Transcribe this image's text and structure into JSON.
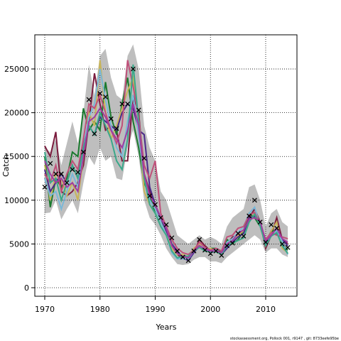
{
  "chart_data": {
    "type": "line",
    "xlabel": "Years",
    "ylabel": "Catch",
    "footer": "stockassessment.org, Pollock 001, r9147 , git: 8733eefe95be",
    "grid": true,
    "xlim": [
      1968.2,
      2015.66
    ],
    "ylim": [
      -974,
      28900
    ],
    "xticks": [
      1970,
      1980,
      1990,
      2000,
      2010
    ],
    "yticks": [
      0,
      5000,
      10000,
      15000,
      20000,
      25000
    ],
    "x": [
      1970,
      1971,
      1972,
      1973,
      1974,
      1975,
      1976,
      1977,
      1978,
      1979,
      1980,
      1981,
      1982,
      1983,
      1984,
      1985,
      1986,
      1987,
      1988,
      1989,
      1990,
      1991,
      1992,
      1993,
      1994,
      1995,
      1996,
      1997,
      1998,
      1999,
      2000,
      2001,
      2002,
      2003,
      2004,
      2005,
      2006,
      2007,
      2008,
      2009,
      2010,
      2011,
      2012,
      2013,
      2014
    ],
    "band": {
      "color": "#bebebe",
      "upper": [
        16000,
        15500,
        17000,
        14000,
        16500,
        19000,
        16500,
        20000,
        25500,
        22000,
        26500,
        27300,
        24000,
        22000,
        21500,
        26500,
        27800,
        25000,
        18500,
        16000,
        14500,
        11000,
        10000,
        8000,
        6000,
        5500,
        5000,
        5500,
        6000,
        5500,
        5800,
        5500,
        5000,
        7000,
        8000,
        8500,
        9000,
        11500,
        11800,
        10000,
        7000,
        8500,
        9000,
        7500,
        7000
      ],
      "lower": [
        8500,
        8600,
        10000,
        7800,
        9000,
        10000,
        8500,
        12000,
        15000,
        14000,
        16000,
        14500,
        15000,
        12500,
        12300,
        16000,
        18000,
        15000,
        10000,
        8000,
        7200,
        6000,
        4500,
        3500,
        2700,
        2600,
        2700,
        3200,
        3500,
        3500,
        3000,
        3000,
        2800,
        3500,
        4000,
        4500,
        5000,
        5500,
        6000,
        5500,
        4000,
        4500,
        4500,
        3800,
        3500
      ]
    },
    "series": [
      {
        "color": "#7b1c3e",
        "values": [
          16200,
          15000,
          17800,
          11000,
          10500,
          11000,
          12000,
          14000,
          19000,
          24500,
          21000,
          18000,
          18500,
          18000,
          14500,
          14500,
          22000,
          20000,
          13000,
          11000,
          9000,
          8000,
          6500,
          5000,
          3800,
          3300,
          3200,
          4000,
          5500,
          4800,
          4200,
          4300,
          4000,
          5000,
          5800,
          6000,
          6500,
          8000,
          9000,
          7500,
          4500,
          6000,
          8000,
          5500,
          5000
        ]
      },
      {
        "color": "#1a7a2e",
        "values": [
          15000,
          9200,
          12500,
          11500,
          12500,
          15500,
          15000,
          20500,
          18000,
          19000,
          18000,
          23500,
          19500,
          17500,
          21000,
          24000,
          19000,
          16000,
          12000,
          10500,
          8500,
          7500,
          6800,
          5000,
          4000,
          3500,
          3500,
          4200,
          5000,
          4200,
          4500,
          4500,
          4000,
          5500,
          5000,
          5500,
          6500,
          8500,
          8000,
          7000,
          5000,
          6500,
          6500,
          5000,
          4300
        ]
      },
      {
        "color": "#c8b45a",
        "values": [
          14000,
          10000,
          13000,
          12500,
          10500,
          12000,
          10000,
          15000,
          20000,
          18500,
          26000,
          20000,
          17000,
          18500,
          20500,
          22500,
          24000,
          19000,
          11000,
          9500,
          8500,
          7500,
          6000,
          4500,
          3800,
          3800,
          3500,
          4500,
          5000,
          4300,
          4500,
          4200,
          4000,
          5000,
          5500,
          6000,
          6500,
          7500,
          8500,
          7200,
          4800,
          6500,
          7500,
          4500,
          4000
        ]
      },
      {
        "color": "#4a2a8a",
        "values": [
          13500,
          11000,
          12000,
          13000,
          12000,
          14000,
          12500,
          16500,
          18500,
          17500,
          19500,
          19000,
          18500,
          18000,
          20000,
          21000,
          20500,
          18000,
          17500,
          11500,
          9500,
          8000,
          6500,
          5000,
          4200,
          3400,
          3100,
          4000,
          4800,
          4500,
          4000,
          4200,
          3800,
          4500,
          5200,
          5800,
          6200,
          8000,
          8200,
          7400,
          5000,
          6000,
          6200,
          5500,
          4800
        ]
      },
      {
        "color": "#7ab8d8",
        "values": [
          12500,
          10500,
          11000,
          9000,
          11000,
          13000,
          11500,
          16000,
          19500,
          21000,
          25000,
          21500,
          18500,
          16000,
          15000,
          19000,
          22000,
          17500,
          12500,
          10000,
          9000,
          7500,
          6000,
          4000,
          3300,
          3300,
          3300,
          4200,
          4800,
          4500,
          4200,
          4300,
          3900,
          5200,
          5600,
          6300,
          7000,
          8500,
          9200,
          7000,
          5200,
          6200,
          6500,
          5300,
          3800
        ]
      },
      {
        "color": "#c0507a",
        "values": [
          13000,
          12000,
          14000,
          11000,
          13000,
          14500,
          13500,
          17000,
          21000,
          20500,
          22000,
          20000,
          18000,
          16500,
          18500,
          26000,
          23000,
          19500,
          14000,
          12500,
          14500,
          8500,
          7000,
          5500,
          4500,
          4000,
          3800,
          4300,
          5200,
          4600,
          4300,
          4500,
          4200,
          5800,
          6000,
          6800,
          7000,
          8300,
          8600,
          7300,
          5500,
          6300,
          6000,
          5800,
          5600
        ]
      },
      {
        "color": "#3aa88a",
        "values": [
          15500,
          12000,
          12500,
          10000,
          12000,
          14000,
          12500,
          16000,
          18500,
          17500,
          20000,
          18500,
          17000,
          14500,
          13500,
          17000,
          25500,
          19000,
          12500,
          9500,
          8500,
          7000,
          6000,
          4200,
          3400,
          3600,
          3600,
          4200,
          4600,
          4200,
          4100,
          4100,
          3800,
          4800,
          5100,
          5400,
          5700,
          7500,
          8400,
          7100,
          4800,
          5900,
          6300,
          4800,
          3900
        ]
      },
      {
        "color": "#a03ca0",
        "values": [
          14500,
          13000,
          12000,
          12500,
          11500,
          12000,
          11000,
          15000,
          19000,
          19500,
          20500,
          19500,
          18000,
          17000,
          16000,
          18000,
          21000,
          18500,
          13000,
          10500,
          9500,
          8000,
          6800,
          4800,
          3900,
          3600,
          3400,
          4200,
          4800,
          4400,
          4200,
          4200,
          4000,
          5000,
          5400,
          6200,
          6600,
          7800,
          8000,
          7600,
          5300,
          6000,
          6800,
          5600,
          5200
        ]
      }
    ],
    "points": {
      "color": "#000000",
      "marker": "x",
      "values": [
        11500,
        14200,
        13000,
        13000,
        12000,
        13500,
        13200,
        15500,
        21500,
        17600,
        22200,
        21800,
        19300,
        18200,
        21000,
        21000,
        25000,
        20300,
        14800,
        10500,
        9500,
        8000,
        7200,
        5700,
        4200,
        3500,
        3100,
        4200,
        5500,
        4300,
        3900,
        4200,
        3700,
        4800,
        5100,
        6200,
        5900,
        8200,
        10000,
        7500,
        5200,
        7200,
        6800,
        5000,
        4600
      ]
    }
  }
}
